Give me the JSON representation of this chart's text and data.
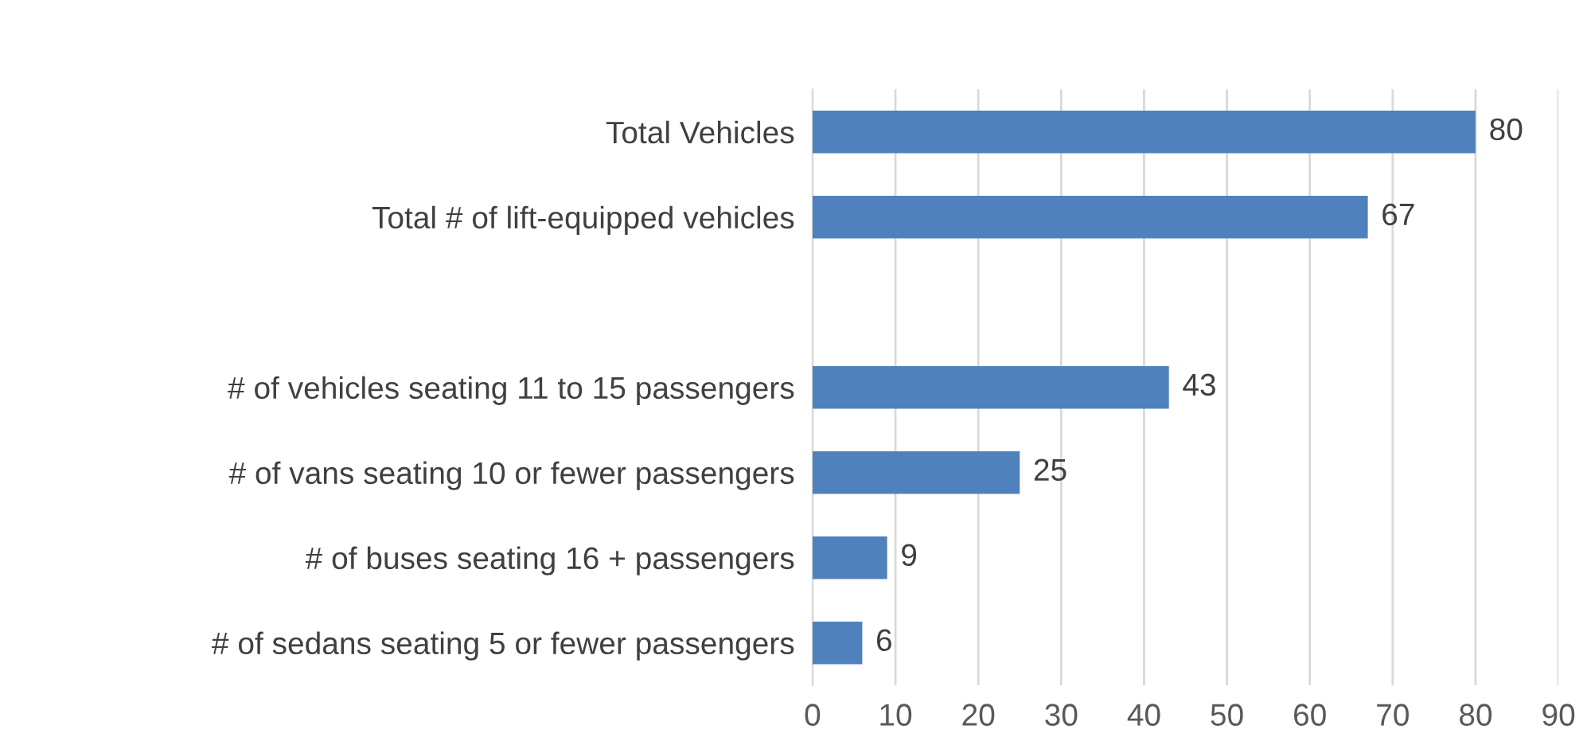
{
  "chart_data": {
    "type": "bar",
    "orientation": "horizontal",
    "categories": [
      "Total Vehicles",
      "Total # of lift-equipped vehicles",
      null,
      "# of vehicles seating 11 to 15 passengers",
      "# of vans seating 10 or fewer passengers",
      "# of buses seating 16 + passengers",
      "# of sedans seating 5 or fewer passengers"
    ],
    "values": [
      80,
      67,
      null,
      43,
      25,
      9,
      6
    ],
    "color": "#4f81bd",
    "xlim": [
      0,
      90
    ],
    "xticks": [
      0,
      10,
      20,
      30,
      40,
      50,
      60,
      70,
      80,
      90
    ],
    "grid": "x",
    "data_labels": true,
    "legend": false
  }
}
